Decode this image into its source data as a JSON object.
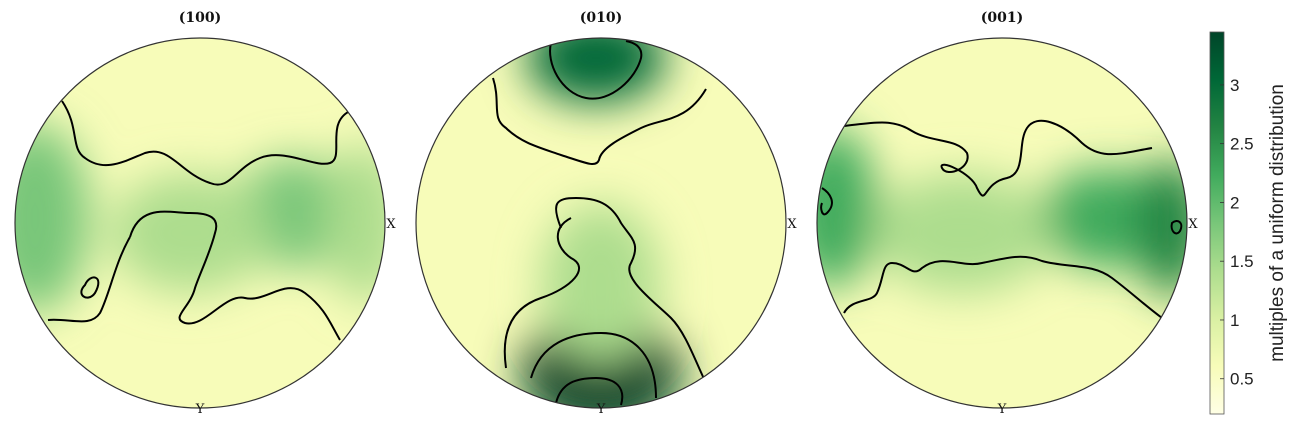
{
  "chart_data": {
    "type": "heatmap",
    "subtype": "pole-figure",
    "panels": [
      {
        "title": "(100)",
        "axis_labels": {
          "right": "X",
          "bottom": "Y"
        },
        "contour_levels": [
          1
        ],
        "maxima": [
          {
            "label": "edge-left",
            "value": 1.8
          },
          {
            "label": "center-right",
            "value": 1.9
          },
          {
            "label": "edge-right",
            "value": 1.6
          }
        ]
      },
      {
        "title": "(010)",
        "axis_labels": {
          "right": "X",
          "bottom": "Y"
        },
        "contour_levels": [
          1,
          2,
          3
        ],
        "maxima": [
          {
            "label": "top",
            "value": 3.2
          },
          {
            "label": "bottom",
            "value": 3.5
          }
        ]
      },
      {
        "title": "(001)",
        "axis_labels": {
          "right": "X",
          "bottom": "Y"
        },
        "contour_levels": [
          1,
          3
        ],
        "maxima": [
          {
            "label": "edge-left",
            "value": 2.3
          },
          {
            "label": "center-right",
            "value": 2.2
          },
          {
            "label": "edge-right",
            "value": 2.8
          }
        ]
      }
    ],
    "colorbar": {
      "label": "multiples of a uniform distribution",
      "min": 0.2,
      "max": 3.45,
      "ticks": [
        0.5,
        1,
        1.5,
        2,
        2.5,
        3
      ],
      "tick_labels": [
        "0.5",
        "1",
        "1.5",
        "2",
        "2.5",
        "3"
      ],
      "colormap": [
        "#ffffe5",
        "#f7fcb9",
        "#d9f0a3",
        "#addd8e",
        "#78c679",
        "#41ab5d",
        "#238443",
        "#006837",
        "#004529"
      ]
    },
    "colors": {
      "contour": "#000000",
      "outline": "#333333"
    }
  }
}
